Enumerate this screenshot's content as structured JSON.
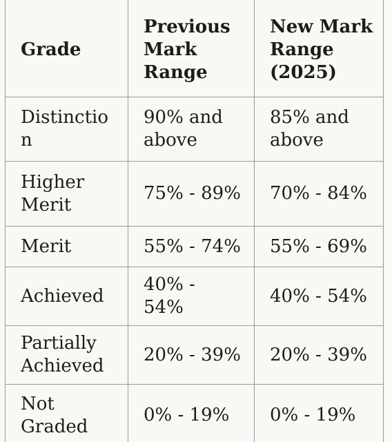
{
  "table": {
    "headers": [
      "Grade",
      "Previous Mark Range",
      "New Mark Range (2025)"
    ],
    "rows": [
      {
        "grade": "Distinction",
        "previous": "90% and above",
        "new": "85% and above"
      },
      {
        "grade": "Higher Merit",
        "previous": "75% - 89%",
        "new": "70% - 84%"
      },
      {
        "grade": "Merit",
        "previous": "55% - 74%",
        "new": "55% - 69%"
      },
      {
        "grade": "Achieved",
        "previous": "40% - 54%",
        "new": "40% - 54%"
      },
      {
        "grade": "Partially Achieved",
        "previous": "20% - 39%",
        "new": "20% - 39%"
      },
      {
        "grade": "Not Graded",
        "previous": "0% - 19%",
        "new": "0% - 19%"
      }
    ]
  }
}
